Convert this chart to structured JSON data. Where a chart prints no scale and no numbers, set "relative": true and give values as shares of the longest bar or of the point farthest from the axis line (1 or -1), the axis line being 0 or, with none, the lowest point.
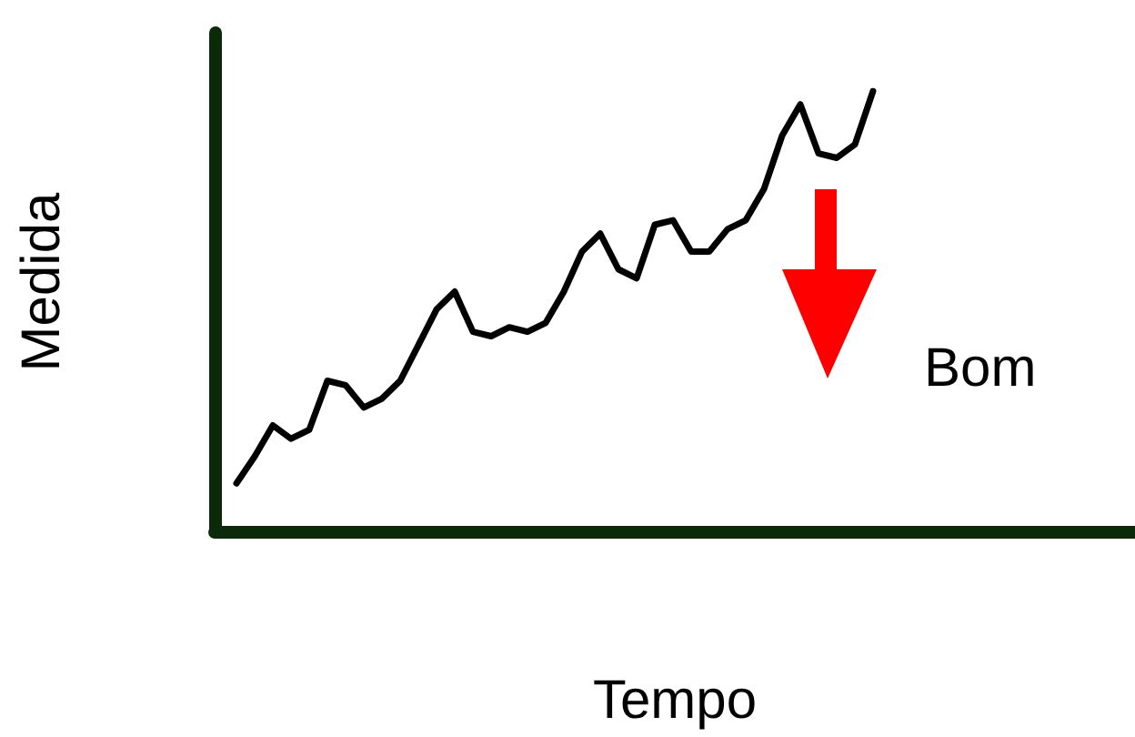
{
  "chart_data": {
    "type": "line",
    "relative": true,
    "xlabel": "Tempo",
    "ylabel": "Medida",
    "annotations": [
      "Bom"
    ],
    "color": "#000000",
    "marker": "none",
    "line_style": "solid",
    "tick_labels": false,
    "categories": [
      null,
      null,
      null,
      null,
      null,
      null,
      null,
      null,
      null,
      null,
      null,
      null,
      null,
      null,
      null,
      null,
      null,
      null,
      null,
      null,
      null,
      null,
      null,
      null,
      null,
      null,
      null,
      null,
      null,
      null,
      null,
      null,
      null,
      null,
      null,
      null
    ],
    "values": [
      0.12,
      0.18,
      0.25,
      0.22,
      0.24,
      0.35,
      0.34,
      0.29,
      0.31,
      0.35,
      0.43,
      0.51,
      0.55,
      0.46,
      0.45,
      0.47,
      0.46,
      0.48,
      0.55,
      0.64,
      0.68,
      0.6,
      0.58,
      0.7,
      0.71,
      0.64,
      0.64,
      0.69,
      0.71,
      0.78,
      0.9,
      0.97,
      0.86,
      0.85,
      0.88,
      1
    ]
  }
}
